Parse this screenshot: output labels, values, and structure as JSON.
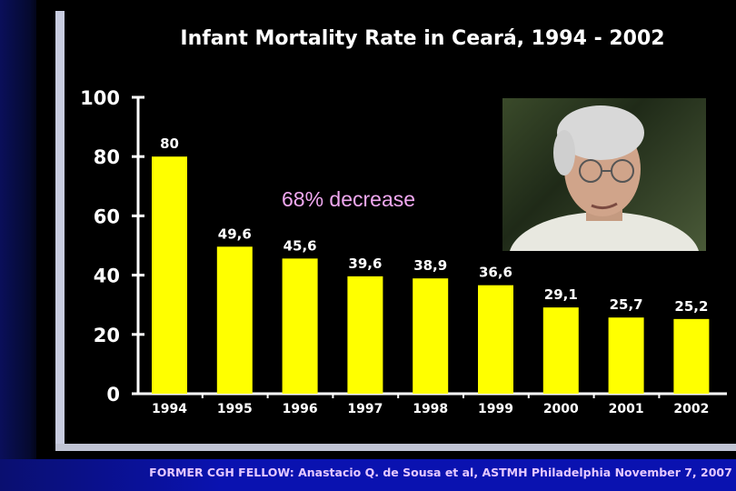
{
  "chart_data": {
    "type": "bar",
    "title": "Infant Mortality Rate in Ceará, 1994 - 2002",
    "categories": [
      "1994",
      "1995",
      "1996",
      "1997",
      "1998",
      "1999",
      "2000",
      "2001",
      "2002"
    ],
    "values": [
      80,
      49.6,
      45.6,
      39.6,
      38.9,
      36.6,
      29.1,
      25.7,
      25.2
    ],
    "data_labels": [
      "80",
      "49,6",
      "45,6",
      "39,6",
      "38,9",
      "36,6",
      "29,1",
      "25,7",
      "25,2"
    ],
    "yticks": [
      "0",
      "20",
      "40",
      "60",
      "80",
      "100"
    ],
    "ylim": [
      0,
      100
    ],
    "xlabel": "",
    "ylabel": "",
    "grid": false,
    "bar_color": "#ffff00",
    "annotation": "68% decrease"
  },
  "caption": "FORMER CGH FELLOW: Anastacio Q. de Sousa et al, ASTMH Philadelphia November 7, 2007",
  "photo": "portrait-photo"
}
